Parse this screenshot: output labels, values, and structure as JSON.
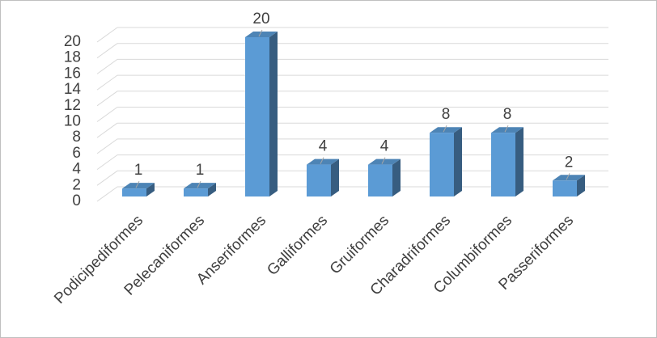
{
  "chart_data": {
    "type": "bar3d",
    "categories": [
      "Podicipediformes",
      "Pelecaniformes",
      "Anseriformes",
      "Galliformes",
      "Gruiformes",
      "Charadriformes",
      "Columbiformes",
      "Passeriformes"
    ],
    "values": [
      1,
      1,
      20,
      4,
      4,
      8,
      8,
      2
    ],
    "color": "#5b9bd5",
    "ylim": [
      0,
      20
    ],
    "yticks": [
      0,
      2,
      4,
      6,
      8,
      10,
      12,
      14,
      16,
      18,
      20
    ],
    "grid": true
  }
}
